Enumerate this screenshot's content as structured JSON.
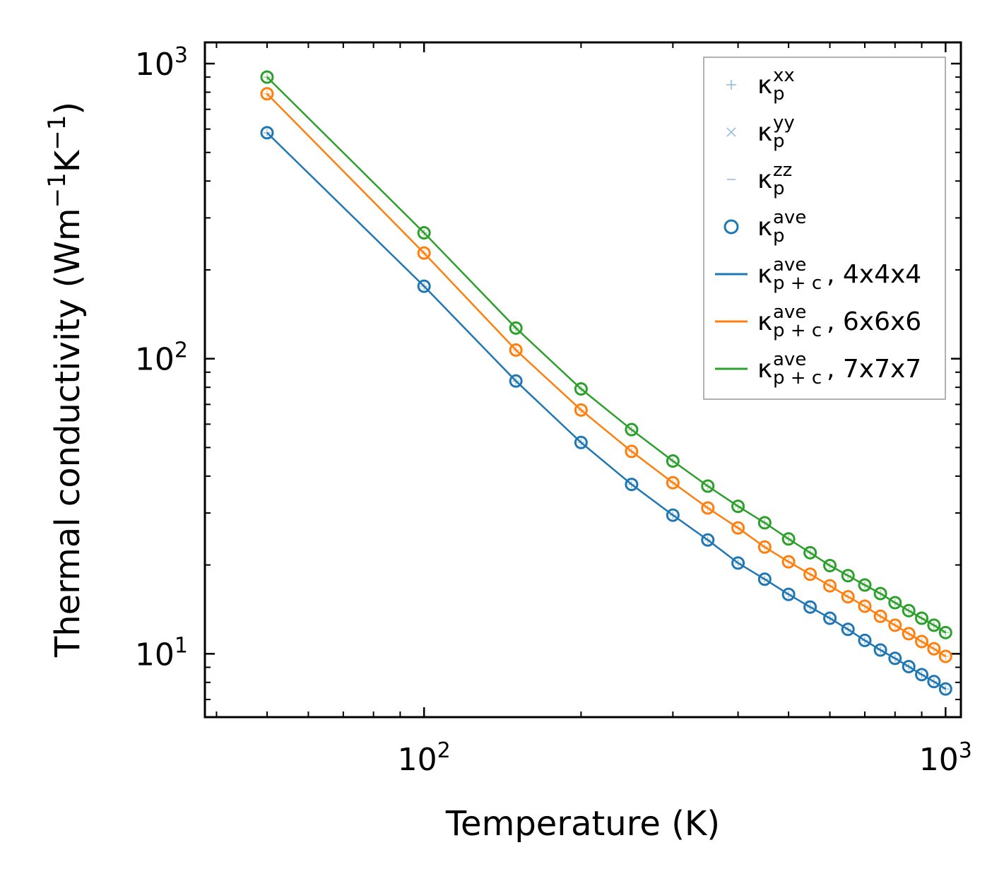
{
  "chart_data": {
    "type": "line",
    "title": "",
    "xlabel": "Temperature (K)",
    "ylabel": "Thermal conductivity (Wm⁻¹K⁻¹)",
    "xscale": "log",
    "yscale": "log",
    "xlim": [
      38,
      1070
    ],
    "ylim": [
      6.1,
      1180
    ],
    "x": [
      50,
      100,
      150,
      200,
      250,
      300,
      350,
      400,
      450,
      500,
      550,
      600,
      650,
      700,
      750,
      800,
      850,
      900,
      950,
      1000
    ],
    "xticks": [
      {
        "value": 100,
        "base": "10",
        "exp": "2"
      },
      {
        "value": 1000,
        "base": "10",
        "exp": "3"
      }
    ],
    "yticks": [
      {
        "value": 10,
        "base": "10",
        "exp": "1"
      },
      {
        "value": 100,
        "base": "10",
        "exp": "2"
      },
      {
        "value": 1000,
        "base": "10",
        "exp": "3"
      }
    ],
    "legend_position": "top-right",
    "series": [
      {
        "name": "4x4x4",
        "color": "#1f77b4",
        "values": [
          583,
          176,
          84,
          52,
          37.5,
          29.5,
          24.3,
          20.3,
          17.9,
          15.9,
          14.4,
          13.2,
          12.1,
          11.1,
          10.3,
          9.65,
          9.05,
          8.5,
          8.05,
          7.6
        ]
      },
      {
        "name": "6x6x6",
        "color": "#ff7f0e",
        "values": [
          790,
          228,
          107,
          67,
          48.5,
          38,
          31.2,
          26.7,
          23,
          20.5,
          18.6,
          17,
          15.6,
          14.5,
          13.4,
          12.5,
          11.7,
          11,
          10.4,
          9.8
        ]
      },
      {
        "name": "7x7x7",
        "color": "#2ca02c",
        "values": [
          900,
          267,
          127,
          79,
          57.5,
          45,
          37,
          31.6,
          27.8,
          24.5,
          22,
          19.9,
          18.4,
          17.1,
          16,
          14.9,
          14,
          13.2,
          12.5,
          11.8
        ]
      }
    ]
  },
  "legend": [
    {
      "marker": "+",
      "color": "#8fb8d8",
      "kappa": "κ",
      "sub": "p",
      "sup": "xx",
      "suffix": ""
    },
    {
      "marker": "×",
      "color": "#8fb8d8",
      "kappa": "κ",
      "sub": "p",
      "sup": "yy",
      "suffix": ""
    },
    {
      "marker": "–",
      "color": "#8fb8d8",
      "kappa": "κ",
      "sub": "p",
      "sup": "zz",
      "suffix": ""
    },
    {
      "marker": "circle",
      "color": "#1f77b4",
      "kappa": "κ",
      "sub": "p",
      "sup": "ave",
      "suffix": ""
    },
    {
      "marker": "line",
      "color": "#1f77b4",
      "kappa": "κ",
      "sub": "p + c",
      "sup": "ave",
      "suffix": ", 4x4x4"
    },
    {
      "marker": "line",
      "color": "#ff7f0e",
      "kappa": "κ",
      "sub": "p + c",
      "sup": "ave",
      "suffix": ", 6x6x6"
    },
    {
      "marker": "line",
      "color": "#2ca02c",
      "kappa": "κ",
      "sub": "p + c",
      "sup": "ave",
      "suffix": ", 7x7x7"
    }
  ]
}
